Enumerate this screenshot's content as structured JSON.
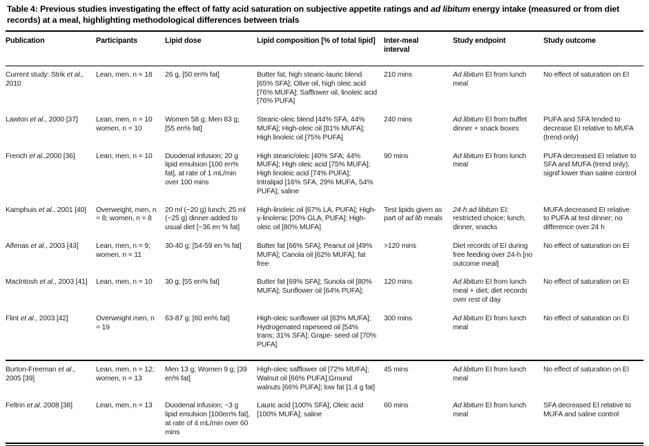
{
  "page": {
    "title_segments": [
      {
        "t": "Table 4: Previous studies investigating the effect of fatty acid saturation on subjective appetite ratings and "
      },
      {
        "t": "ad libitum",
        "i": true
      },
      {
        "t": " energy intake (measured or from diet records) at a meal, highlighting methodological differences between trials"
      }
    ]
  },
  "colors": {
    "background": "#ffffff",
    "text": "#1c1c1c",
    "title": "#000000",
    "rule": "#000000"
  },
  "table": {
    "columns": [
      {
        "key": "publication",
        "label": "Publication"
      },
      {
        "key": "participants",
        "label": "Participants"
      },
      {
        "key": "lipid_dose",
        "label": "Lipid dose"
      },
      {
        "key": "lipid_composition",
        "label": "Lipid composition [% of total lipid]"
      },
      {
        "key": "inter_meal_interval",
        "label": "Inter-meal interval"
      },
      {
        "key": "study_endpoint",
        "label": "Study endpoint"
      },
      {
        "key": "study_outcome",
        "label": "Study outcome"
      }
    ],
    "rows": [
      {
        "cells": {
          "publication": [
            {
              "t": "Current study: Strik "
            },
            {
              "t": "et al",
              "i": true
            },
            {
              "t": "., 2010"
            }
          ],
          "participants": [
            {
              "t": "Lean, men, n = 18"
            }
          ],
          "lipid_dose": [
            {
              "t": "26 g, [50 en% fat]"
            }
          ],
          "lipid_composition": [
            {
              "t": "Butter fat, high stearic-lauric blend [65% SFA]; Olive oil, high oleic acid [76% MUFA]; Safflower oil, linoleic acid [76% PUFA]"
            }
          ],
          "inter_meal_interval": [
            {
              "t": "210 mins"
            }
          ],
          "study_endpoint": [
            {
              "t": "Ad libitum",
              "i": true
            },
            {
              "t": " EI from lunch meal"
            }
          ],
          "study_outcome": [
            {
              "t": "No effect of saturation on EI"
            }
          ]
        }
      },
      {
        "cells": {
          "publication": [
            {
              "t": "Lawton "
            },
            {
              "t": "et al",
              "i": true
            },
            {
              "t": "., 2000 [37]"
            }
          ],
          "participants": [
            {
              "t": "Lean, men, n = 10 women, n = 10"
            }
          ],
          "lipid_dose": [
            {
              "t": "Women 58 g; Men 83 g; [55 en% fat]"
            }
          ],
          "lipid_composition": [
            {
              "t": "Stearic-oleic blend [44% SFA, 44% MUFA]; High-oleic oil [81% MUFA]; High linoleic oil [75% PUFA]"
            }
          ],
          "inter_meal_interval": [
            {
              "t": "240 mins"
            }
          ],
          "study_endpoint": [
            {
              "t": "Ad libitum",
              "i": true
            },
            {
              "t": " EI from buffet dinner + snack boxes"
            }
          ],
          "study_outcome": [
            {
              "t": "PUFA and SFA tended to decrease EI relative to MUFA (trend only)"
            }
          ]
        }
      },
      {
        "cells": {
          "publication": [
            {
              "t": "French "
            },
            {
              "t": "et al",
              "i": true
            },
            {
              "t": ".,2000 [36]"
            }
          ],
          "participants": [
            {
              "t": "Lean, men, n = 10"
            }
          ],
          "lipid_dose": [
            {
              "t": "Duodenal infusion; 20 g lipid emulsion [100 en% fat], at rate of 1 mL/min over 100 mins"
            }
          ],
          "lipid_composition": [
            {
              "t": "High stearic/oleic [40% SFA; 44% MUFA]; High oleic acid [75% MUFA]; High linoleic acid [74% PUFA]; Intralipid [16% SFA, 29% MUFA, 54% PUFA]; saline"
            }
          ],
          "inter_meal_interval": [
            {
              "t": "90 mins"
            }
          ],
          "study_endpoint": [
            {
              "t": "Ad libitum",
              "i": true
            },
            {
              "t": " EI from lunch meal"
            }
          ],
          "study_outcome": [
            {
              "t": "PUFA decreased EI relative to SFA and MUFA (trend only); signif lower than saline control"
            }
          ]
        }
      },
      {
        "cells": {
          "publication": [
            {
              "t": "Kamphuis "
            },
            {
              "t": "et al",
              "i": true
            },
            {
              "t": "., 2001 [40]"
            }
          ],
          "participants": [
            {
              "t": "Overweight, men, n = 8; women, n = 8"
            }
          ],
          "lipid_dose": [
            {
              "t": "20 ml (~20 g) lunch; 25 ml (~25 g) dinner added to usual diet [~36 en % fat]"
            }
          ],
          "lipid_composition": [
            {
              "t": "High-linoleic oil [67% LA, PUFA]; High-γ-linolenic [20% GLA, PUFA]; High-oleic oil [80% MUFA]"
            }
          ],
          "inter_meal_interval": [
            {
              "t": "Test lipids given as part of "
            },
            {
              "t": "ad lib",
              "i": true
            },
            {
              "t": " meals"
            }
          ],
          "study_endpoint": [
            {
              "t": "24-h ad libitum",
              "i": true
            },
            {
              "t": " EI: restricted choice; lunch, dinner, snacks"
            }
          ],
          "study_outcome": [
            {
              "t": "MUFA decreased EI relative to PUFA at test dinner; no difference over 24 h"
            }
          ]
        }
      },
      {
        "cells": {
          "publication": [
            {
              "t": "Alfenas "
            },
            {
              "t": "et al",
              "i": true
            },
            {
              "t": "., 2003 [43]"
            }
          ],
          "participants": [
            {
              "t": "Lean, men, n = 9; women, n = 11"
            }
          ],
          "lipid_dose": [
            {
              "t": "30-40 g; [54-59 en % fat]"
            }
          ],
          "lipid_composition": [
            {
              "t": "Butter fat [66% SFA]; Peanut oil [49% MUFA]; Canola oil [62% MUFA]; fat free"
            }
          ],
          "inter_meal_interval": [
            {
              "t": ">120 mins"
            }
          ],
          "study_endpoint": [
            {
              "t": "Diet records of EI during free feeding over 24-h [no outcome meal]"
            }
          ],
          "study_outcome": [
            {
              "t": "No effect of saturation on EI"
            }
          ]
        }
      },
      {
        "cells": {
          "publication": [
            {
              "t": "MacIntosh "
            },
            {
              "t": "et al",
              "i": true
            },
            {
              "t": "., 2003 [41]"
            }
          ],
          "participants": [
            {
              "t": "Lean, men, n = 10"
            }
          ],
          "lipid_dose": [
            {
              "t": "30 g; [55 en% fat]"
            }
          ],
          "lipid_composition": [
            {
              "t": "Butter fat [69% SFA]; Sunola oil [80% MUFA]; Sunflower oil [64% PUFA];"
            }
          ],
          "inter_meal_interval": [
            {
              "t": "120 mins"
            }
          ],
          "study_endpoint": [
            {
              "t": "Ad libitum",
              "i": true
            },
            {
              "t": " EI from lunch meal + diet; diet records over rest of day"
            }
          ],
          "study_outcome": [
            {
              "t": "No effect of saturation on EI"
            }
          ]
        }
      },
      {
        "cells": {
          "publication": [
            {
              "t": "Flint "
            },
            {
              "t": "et al",
              "i": true
            },
            {
              "t": "., 2003 [42]"
            }
          ],
          "participants": [
            {
              "t": "Overweight men, n = 19"
            }
          ],
          "lipid_dose": [
            {
              "t": "63-87 g; [60 en% fat]"
            }
          ],
          "lipid_composition": [
            {
              "t": "High-oleic sunflower oil [83% MUFA]; Hydrogenated rapeseed oil [54% trans; 31% SFA]; Grape- seed oil [70% PUFA]"
            }
          ],
          "inter_meal_interval": [
            {
              "t": "300 mins"
            }
          ],
          "study_endpoint": [
            {
              "t": "Ad libitum",
              "i": true
            },
            {
              "t": " EI from lunch meal"
            }
          ],
          "study_outcome": [
            {
              "t": "No effect of saturation on EI"
            }
          ]
        }
      },
      {
        "rule_above": true,
        "cells": {
          "publication": [
            {
              "t": "Burton-Freeman "
            },
            {
              "t": "et al",
              "i": true
            },
            {
              "t": "., 2005 [39]"
            }
          ],
          "participants": [
            {
              "t": "Lean, men, n = 12; women, n = 13"
            }
          ],
          "lipid_dose": [
            {
              "t": "Men 13 g; Women 9 g; [39 en% fat]"
            }
          ],
          "lipid_composition": [
            {
              "t": "High-oleic safflower oil [72% MUFA]; Walnut oil [66% PUFA];Ground walnuts [66% PUFA]; low fat [1.4 g fat]"
            }
          ],
          "inter_meal_interval": [
            {
              "t": "45 mins"
            }
          ],
          "study_endpoint": [
            {
              "t": "Ad libitum",
              "i": true
            },
            {
              "t": " EI from lunch meal"
            }
          ],
          "study_outcome": [
            {
              "t": "No effect of saturation on EI"
            }
          ]
        }
      },
      {
        "cells": {
          "publication": [
            {
              "t": "Feltrin "
            },
            {
              "t": "et al",
              "i": true
            },
            {
              "t": ". 2008 [38]"
            }
          ],
          "participants": [
            {
              "t": "Lean, men, n = 13"
            }
          ],
          "lipid_dose": [
            {
              "t": "Duodenal infusion; ~3 g lipid emulsion [100en% fat], at rate of 4 mL/min over 60 mins"
            }
          ],
          "lipid_composition": [
            {
              "t": "Lauric acid [100% SFA]; Oleic acid [100% MUFA]; saline"
            }
          ],
          "inter_meal_interval": [
            {
              "t": "60 mins"
            }
          ],
          "study_endpoint": [
            {
              "t": "Ad libitum",
              "i": true
            },
            {
              "t": " EI from lunch meal"
            }
          ],
          "study_outcome": [
            {
              "t": "SFA decreased EI relative to MUFA and saline control"
            }
          ]
        }
      }
    ]
  }
}
